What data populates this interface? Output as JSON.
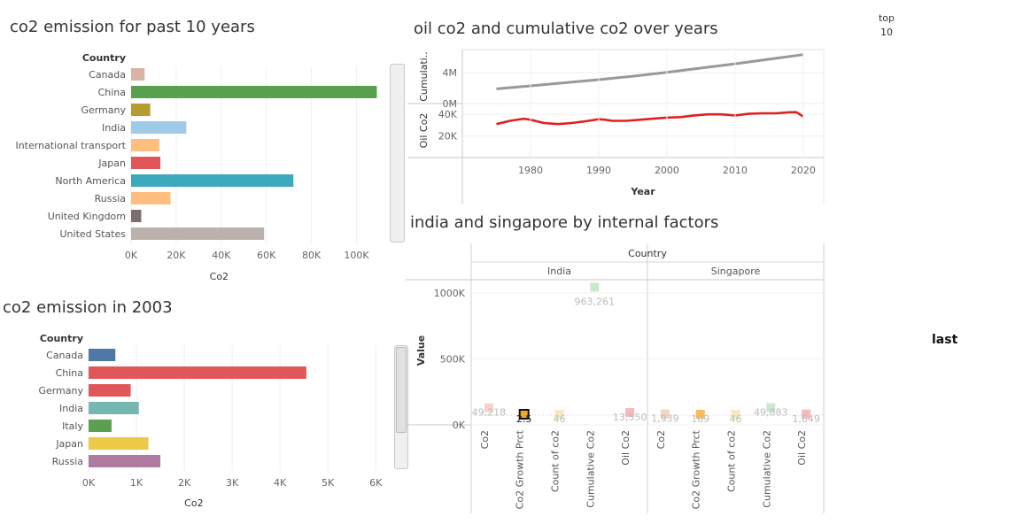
{
  "chart_data": [
    {
      "id": "past10",
      "type": "bar",
      "title": "co2  emission for past 10 years",
      "dim_label": "Country",
      "xlabel": "Co2",
      "xlim": [
        0,
        110000
      ],
      "ticks": [
        "0K",
        "20K",
        "40K",
        "60K",
        "80K",
        "100K"
      ],
      "tick_values": [
        0,
        20000,
        40000,
        60000,
        80000,
        100000
      ],
      "categories": [
        "Canada",
        "China",
        "Germany",
        "India",
        "International transport",
        "Japan",
        "North America",
        "Russia",
        "United Kingdom",
        "United States"
      ],
      "values": [
        6000,
        109000,
        8500,
        24500,
        12500,
        13000,
        72000,
        17500,
        4500,
        59000
      ],
      "colors": [
        "#d7b5a6",
        "#59a14f",
        "#b69b2f",
        "#a0cbe8",
        "#ffbe7d",
        "#e15759",
        "#3ca9bd",
        "#ffbe7d",
        "#79706e",
        "#bab0ac"
      ]
    },
    {
      "id": "y2003",
      "type": "bar",
      "title": "co2 emission in 2003",
      "dim_label": "Country",
      "xlabel": "Co2",
      "xlim": [
        0,
        6200
      ],
      "ticks": [
        "0K",
        "1K",
        "2K",
        "3K",
        "4K",
        "5K",
        "6K"
      ],
      "tick_values": [
        0,
        1000,
        2000,
        3000,
        4000,
        5000,
        6000
      ],
      "categories": [
        "Canada",
        "China",
        "Germany",
        "India",
        "Italy",
        "Japan",
        "Russia"
      ],
      "values": [
        560,
        4550,
        880,
        1050,
        480,
        1250,
        1500
      ],
      "colors": [
        "#4e79a7",
        "#e15759",
        "#e15759",
        "#76b7b2",
        "#59a14f",
        "#edc948",
        "#b07aa1"
      ]
    },
    {
      "id": "oil",
      "type": "line",
      "title": "oil co2 and cumulative co2 over years",
      "xlabel": "Year",
      "xlim": [
        1970,
        2023
      ],
      "x_ticks": [
        1980,
        1990,
        2000,
        2010,
        2020
      ],
      "series": [
        {
          "axis_label": "Cumulati..",
          "ticks": [
            "4M",
            "0M"
          ],
          "tick_values": [
            4000000,
            0
          ],
          "ylim": [
            0,
            7000000
          ],
          "color": "#999999",
          "x": [
            1975,
            1980,
            1985,
            1990,
            1995,
            2000,
            2005,
            2010,
            2015,
            2020
          ],
          "values": [
            1900000,
            2300000,
            2700000,
            3100000,
            3550000,
            4050000,
            4600000,
            5150000,
            5750000,
            6350000
          ]
        },
        {
          "axis_label": "Oil Co2",
          "ticks": [
            "40K",
            "20K"
          ],
          "tick_values": [
            40000,
            20000
          ],
          "ylim": [
            0,
            50000
          ],
          "color": "#e02020",
          "x": [
            1975,
            1977,
            1979,
            1980,
            1982,
            1984,
            1986,
            1988,
            1990,
            1991,
            1992,
            1994,
            1996,
            1998,
            2000,
            2002,
            2004,
            2006,
            2008,
            2010,
            2012,
            2014,
            2016,
            2018,
            2019,
            2020
          ],
          "values": [
            31000,
            34000,
            36000,
            35000,
            32000,
            31000,
            32000,
            33500,
            35500,
            35000,
            34000,
            34000,
            35000,
            36000,
            37000,
            37500,
            39000,
            40000,
            40000,
            39000,
            40500,
            41000,
            41000,
            42000,
            42000,
            38000
          ]
        }
      ]
    },
    {
      "id": "factors",
      "type": "scatter",
      "title": "india and singapore by internal factors",
      "column_header": "Country",
      "ylabel": "Value",
      "ylim": [
        0,
        1100000
      ],
      "y_ticks": [
        "1000K",
        "500K",
        "0K"
      ],
      "y_tick_values": [
        1000000,
        500000,
        0
      ],
      "panes": [
        "India",
        "Singapore"
      ],
      "measures": [
        "Co2",
        "Co2 Growth Prct",
        "Count of co2",
        "Cumulative Co2",
        "Oil Co2"
      ],
      "colors": [
        "#f2c6b3",
        "#f5a623",
        "#f0e2b0",
        "#b8e0c2",
        "#f4a3a8"
      ],
      "points": [
        {
          "pane": "India",
          "measure": "Co2",
          "value": 49218,
          "label": "49,218"
        },
        {
          "pane": "India",
          "measure": "Co2 Growth Prct",
          "value": 2.5,
          "label": "2.5"
        },
        {
          "pane": "India",
          "measure": "Count of co2",
          "value": 46,
          "label": "46"
        },
        {
          "pane": "India",
          "measure": "Cumulative Co2",
          "value": 963261,
          "label": "963,261"
        },
        {
          "pane": "India",
          "measure": "Oil Co2",
          "value": 13550,
          "label": "13,550"
        },
        {
          "pane": "Singapore",
          "measure": "Co2",
          "value": 1939,
          "label": "1,939"
        },
        {
          "pane": "Singapore",
          "measure": "Co2 Growth Prct",
          "value": 169,
          "label": "169"
        },
        {
          "pane": "Singapore",
          "measure": "Count of co2",
          "value": 46,
          "label": "46"
        },
        {
          "pane": "Singapore",
          "measure": "Cumulative Co2",
          "value": 49883,
          "label": "49,883"
        },
        {
          "pane": "Singapore",
          "measure": "Oil Co2",
          "value": 1649,
          "label": "1,649"
        }
      ]
    }
  ],
  "top_filter": {
    "label": "top",
    "value": "10"
  },
  "last_label": "last"
}
